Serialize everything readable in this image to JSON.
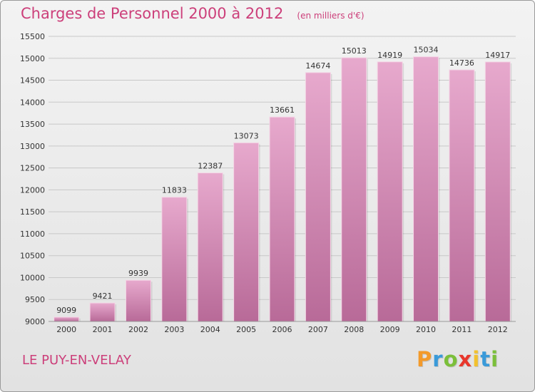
{
  "title": "Charges de Personnel 2000 à 2012",
  "unit": "(en milliers d'€)",
  "commune": "LE PUY-EN-VELAY",
  "brand": {
    "letters": [
      "P",
      "r",
      "o",
      "x",
      "i",
      "t",
      "i"
    ],
    "colors": [
      "#f39a2b",
      "#3a9ad9",
      "#7bbf3a",
      "#e8372c",
      "#f2c12e",
      "#3a9ad9",
      "#7bbf3a"
    ]
  },
  "chart_data": {
    "type": "bar",
    "title": "Charges de Personnel 2000 à 2012",
    "ylabel": "(en milliers d'€)",
    "categories": [
      "2000",
      "2001",
      "2002",
      "2003",
      "2004",
      "2005",
      "2006",
      "2007",
      "2008",
      "2009",
      "2010",
      "2011",
      "2012"
    ],
    "values": [
      9099,
      9421,
      9939,
      11833,
      12387,
      13073,
      13661,
      14674,
      15013,
      14919,
      15034,
      14736,
      14917
    ],
    "ylim": [
      9000,
      15500
    ],
    "yticks": [
      9000,
      9500,
      10000,
      10500,
      11000,
      11500,
      12000,
      12500,
      13000,
      13500,
      14000,
      14500,
      15000,
      15500
    ],
    "grid": "horizontal",
    "bar_color": "#d987b4"
  }
}
